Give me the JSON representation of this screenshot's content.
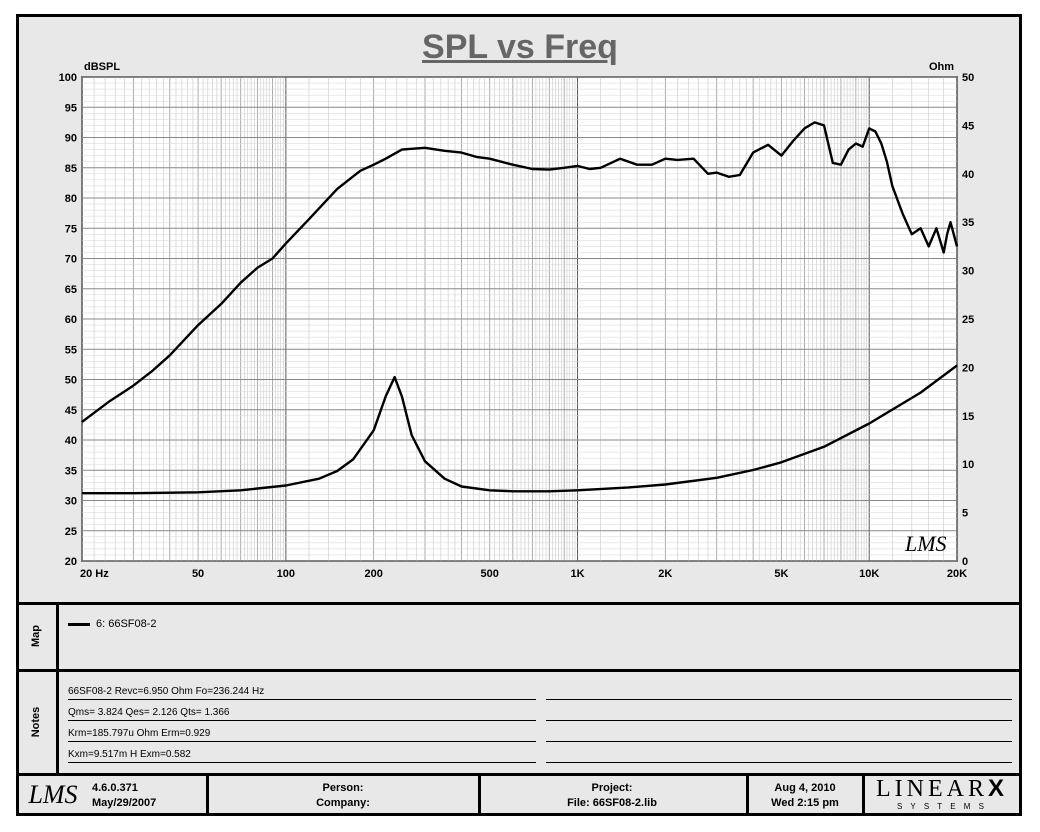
{
  "chart_data": {
    "type": "line",
    "title": "SPL vs Freq",
    "ylabel_left": "dBSPL",
    "ylabel_right": "Ohm",
    "x_scale": "log",
    "xlim": [
      20,
      20000
    ],
    "ylim_left": [
      20,
      100
    ],
    "ylim_right": [
      0,
      50
    ],
    "y_ticks_left": [
      "20",
      "25",
      "30",
      "35",
      "40",
      "45",
      "50",
      "55",
      "60",
      "65",
      "70",
      "75",
      "80",
      "85",
      "90",
      "95",
      "100"
    ],
    "y_ticks_right": [
      "0",
      "5",
      "10",
      "15",
      "20",
      "25",
      "30",
      "35",
      "40",
      "45",
      "50"
    ],
    "x_tick_labels": [
      {
        "value": 20,
        "label": "20  Hz"
      },
      {
        "value": 50,
        "label": "50"
      },
      {
        "value": 100,
        "label": "100"
      },
      {
        "value": 200,
        "label": "200"
      },
      {
        "value": 500,
        "label": "500"
      },
      {
        "value": 1000,
        "label": "1K"
      },
      {
        "value": 2000,
        "label": "2K"
      },
      {
        "value": 5000,
        "label": "5K"
      },
      {
        "value": 10000,
        "label": "10K"
      },
      {
        "value": 20000,
        "label": "20K"
      }
    ],
    "grid": true,
    "series": [
      {
        "axis": "left",
        "x": [
          20,
          22,
          25,
          30,
          35,
          40,
          50,
          60,
          70,
          80,
          90,
          100,
          120,
          150,
          180,
          200,
          220,
          250,
          300,
          350,
          400,
          450,
          500,
          600,
          700,
          800,
          900,
          1000,
          1100,
          1200,
          1400,
          1600,
          1800,
          2000,
          2200,
          2500,
          2800,
          3000,
          3300,
          3600,
          4000,
          4500,
          5000,
          5500,
          6000,
          6500,
          7000,
          7500,
          8000,
          8500,
          9000,
          9500,
          10000,
          10500,
          11000,
          11500,
          12000,
          13000,
          14000,
          15000,
          16000,
          17000,
          18000,
          18500,
          19000,
          20000
        ],
        "y": [
          43,
          44.5,
          46.5,
          49,
          51.5,
          54,
          59,
          62.5,
          66,
          68.5,
          70,
          72.5,
          76.5,
          81.5,
          84.5,
          85.5,
          86.5,
          88,
          88.3,
          87.8,
          87.5,
          86.8,
          86.5,
          85.5,
          84.8,
          84.7,
          85,
          85.3,
          84.8,
          85,
          86.5,
          85.5,
          85.5,
          86.5,
          86.3,
          86.5,
          84,
          84.2,
          83.5,
          83.8,
          87.5,
          88.8,
          87,
          89.5,
          91.5,
          92.5,
          92,
          85.8,
          85.5,
          88,
          89,
          88.5,
          91.5,
          91,
          89,
          86,
          82,
          77.5,
          74,
          75,
          72,
          75,
          71,
          74,
          76,
          72
        ]
      },
      {
        "axis": "right",
        "x": [
          20,
          30,
          50,
          70,
          100,
          130,
          150,
          170,
          200,
          220,
          236,
          250,
          270,
          300,
          350,
          400,
          500,
          600,
          800,
          1000,
          1500,
          2000,
          3000,
          4000,
          5000,
          7000,
          10000,
          15000,
          20000
        ],
        "y": [
          7,
          7,
          7.1,
          7.3,
          7.8,
          8.5,
          9.3,
          10.5,
          13.5,
          17,
          19,
          17,
          13,
          10.3,
          8.5,
          7.7,
          7.3,
          7.2,
          7.2,
          7.3,
          7.6,
          7.9,
          8.6,
          9.4,
          10.2,
          11.8,
          14.2,
          17.4,
          20.2
        ]
      }
    ]
  },
  "map": {
    "label": "Map",
    "entry": "6: 66SF08-2"
  },
  "notes": {
    "label": "Notes",
    "lines": [
      "66SF08-2 Revc=6.950 Ohm  Fo=236.244 Hz",
      "Qms= 3.824  Qes= 2.126  Qts= 1.366",
      "Krm=185.797u Ohm  Erm=0.929",
      "Kxm=9.517m H  Exm=0.582"
    ]
  },
  "footer": {
    "logo": "LMS",
    "version": "4.6.0.371",
    "build_date": "May/29/2007",
    "person_label": "Person:",
    "company_label": "Company:",
    "project_label": "Project:",
    "file_label": "File: 66SF08-2.lib",
    "date": "Aug  4, 2010",
    "time": "Wed  2:15 pm",
    "brand_main": "LINEAR",
    "brand_x": "X",
    "brand_sub": "S Y S T E M S"
  },
  "watermark": "LMS"
}
